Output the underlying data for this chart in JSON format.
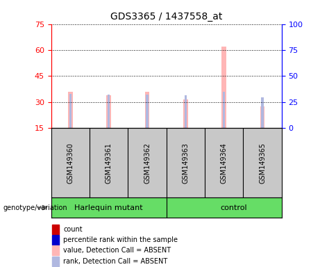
{
  "title": "GDS3365 / 1437558_at",
  "samples": [
    "GSM149360",
    "GSM149361",
    "GSM149362",
    "GSM149363",
    "GSM149364",
    "GSM149365"
  ],
  "group_labels": [
    "Harlequin mutant",
    "control"
  ],
  "group_split": 3,
  "left_yticks": [
    15,
    30,
    45,
    60,
    75
  ],
  "right_yticks": [
    0,
    25,
    50,
    75,
    100
  ],
  "left_ylim": [
    15,
    75
  ],
  "right_ylim": [
    0,
    100
  ],
  "pink_bar_width": 0.12,
  "blue_bar_width": 0.06,
  "value_absent_color": "#ffb6b6",
  "rank_absent_color": "#b0b8e0",
  "count_color": "#cc0000",
  "rank_color": "#0000cc",
  "value_absent": [
    36.0,
    34.0,
    36.0,
    31.5,
    62.0,
    27.5
  ],
  "rank_absent": [
    33.0,
    32.0,
    32.0,
    31.5,
    35.0,
    29.5
  ],
  "bar_bottom": 15,
  "legend_items": [
    {
      "color": "#cc0000",
      "label": "count"
    },
    {
      "color": "#0000cc",
      "label": "percentile rank within the sample"
    },
    {
      "color": "#ffb6b6",
      "label": "value, Detection Call = ABSENT"
    },
    {
      "color": "#b0b8e0",
      "label": "rank, Detection Call = ABSENT"
    }
  ],
  "sample_bg": "#c8c8c8",
  "group_bg": "#66dd66",
  "chart_bg": "white"
}
